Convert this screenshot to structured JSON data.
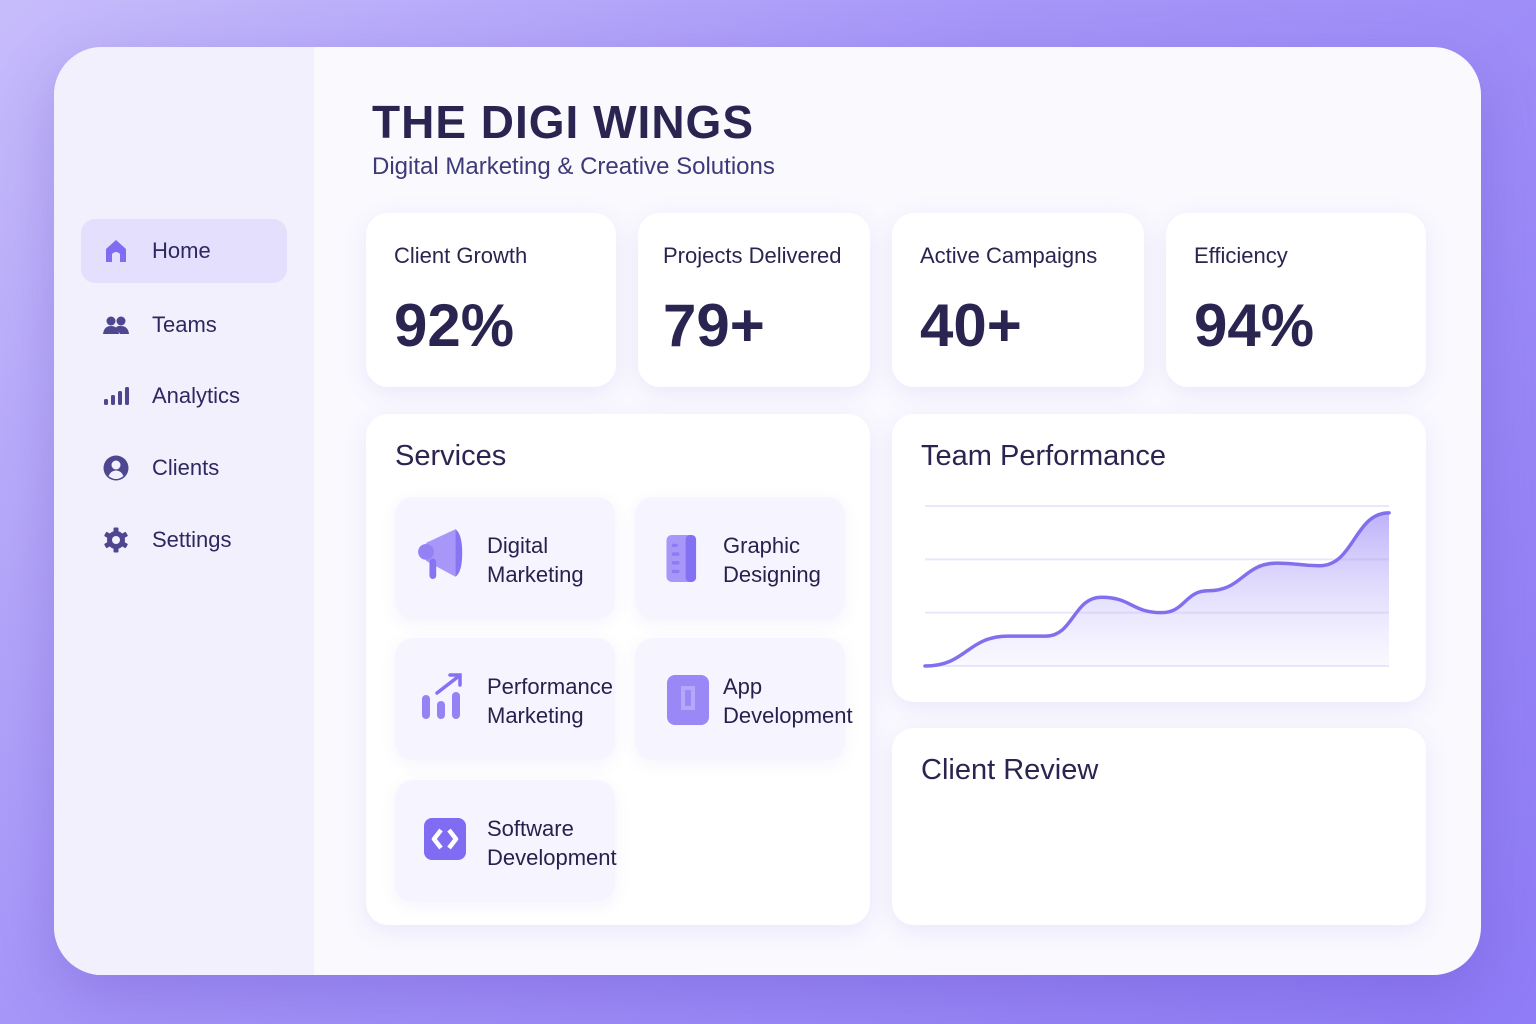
{
  "header": {
    "title": "THE DIGI WINGS",
    "subtitle": "Digital Marketing & Creative Solutions"
  },
  "sidebar": {
    "items": [
      {
        "label": "Home",
        "icon": "home-icon",
        "active": true
      },
      {
        "label": "Teams",
        "icon": "users-icon"
      },
      {
        "label": "Analytics",
        "icon": "bar-chart-icon"
      },
      {
        "label": "Clients",
        "icon": "user-circle-icon"
      },
      {
        "label": "Settings",
        "icon": "gear-icon"
      }
    ]
  },
  "stats": [
    {
      "label": "Client Growth",
      "value": "92%"
    },
    {
      "label": "Projects Delivered",
      "value": "79+"
    },
    {
      "label": "Active Campaigns",
      "value": "40+"
    },
    {
      "label": "Efficiency",
      "value": "94%"
    }
  ],
  "services": {
    "title": "Services",
    "items": [
      {
        "line1": "Digital",
        "line2": "Marketing",
        "icon": "megaphone-icon"
      },
      {
        "line1": "Graphic",
        "line2": "Designing",
        "icon": "design-icon"
      },
      {
        "line1": "Performance",
        "line2": "Marketing",
        "icon": "growth-chart-icon"
      },
      {
        "line1": "App",
        "line2": "Development",
        "icon": "mobile-app-icon"
      },
      {
        "line1": "Software",
        "line2": "Development",
        "icon": "code-icon"
      }
    ]
  },
  "team_performance": {
    "title": "Team Performance"
  },
  "client_review": {
    "title": "Client Review"
  },
  "colors": {
    "accent": "#8b78f4",
    "text": "#2a2550",
    "line": "#8170ee"
  },
  "chart_data": {
    "type": "area",
    "title": "Team Performance",
    "x": [
      0,
      18,
      26,
      38,
      51,
      61,
      76,
      85,
      100
    ],
    "values": [
      0,
      0.56,
      0.56,
      1.29,
      1.0,
      1.41,
      1.93,
      1.88,
      2.87
    ],
    "ylim": [
      0,
      3
    ],
    "grid": true,
    "xlabel": "",
    "ylabel": ""
  }
}
